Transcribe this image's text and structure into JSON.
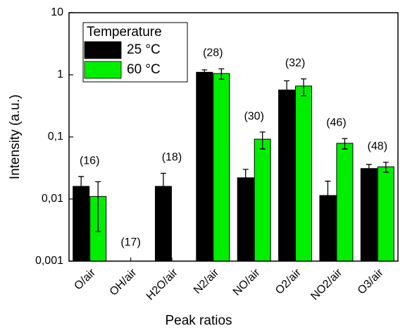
{
  "chart_data": {
    "type": "bar",
    "x_label": "Peak ratios",
    "y_label": "Intensity (a.u.)",
    "log_scale": true,
    "categories": [
      "O/air",
      "OH/air",
      "H2O/air",
      "N2/air",
      "NO/air",
      "O2/air",
      "NO2/air",
      "O3/air"
    ],
    "annotations": [
      "(16)",
      "(17)",
      "(18)",
      "(28)",
      "(30)",
      "(32)",
      "(46)",
      "(48)"
    ],
    "legend_title": "Temperature",
    "legend_position": "upper left",
    "series": [
      {
        "name": "25 °C",
        "color": "#000000",
        "values": [
          0.016,
          null,
          0.016,
          1.1,
          0.022,
          0.57,
          0.0114,
          0.031
        ],
        "errors": [
          0.007,
          null,
          0.01,
          0.1,
          0.008,
          0.23,
          0.008,
          0.005
        ]
      },
      {
        "name": "60 °C",
        "color": "#00ee00",
        "values": [
          0.011,
          null,
          null,
          1.05,
          0.092,
          0.66,
          0.079,
          0.033
        ],
        "errors": [
          0.008,
          null,
          null,
          0.2,
          0.028,
          0.2,
          0.015,
          0.006
        ]
      }
    ],
    "ylim": [
      0.001,
      10
    ],
    "yticks": [
      {
        "value": 0.001,
        "label": "0,001"
      },
      {
        "value": 0.01,
        "label": "0,01"
      },
      {
        "value": 0.1,
        "label": "0,1"
      },
      1,
      10
    ]
  }
}
